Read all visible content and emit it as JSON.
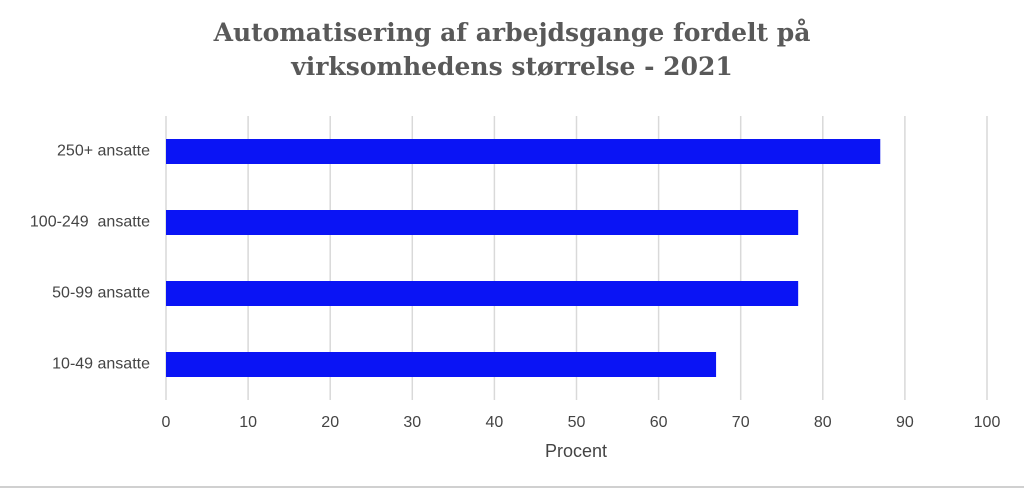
{
  "chart_data": {
    "type": "barh",
    "title": "Automatisering af arbejdsgange fordelt på virksomhedens størrelse - 2021",
    "categories": [
      "250+ ansatte",
      "100-249  ansatte",
      "50-99 ansatte",
      "10-49 ansatte"
    ],
    "values": [
      87,
      77,
      77,
      67
    ],
    "color": "#0a14f5",
    "xlim": [
      0,
      100
    ],
    "xticks": [
      0,
      10,
      20,
      30,
      40,
      50,
      60,
      70,
      80,
      90,
      100
    ],
    "xlabel": "Procent",
    "grid": true
  }
}
